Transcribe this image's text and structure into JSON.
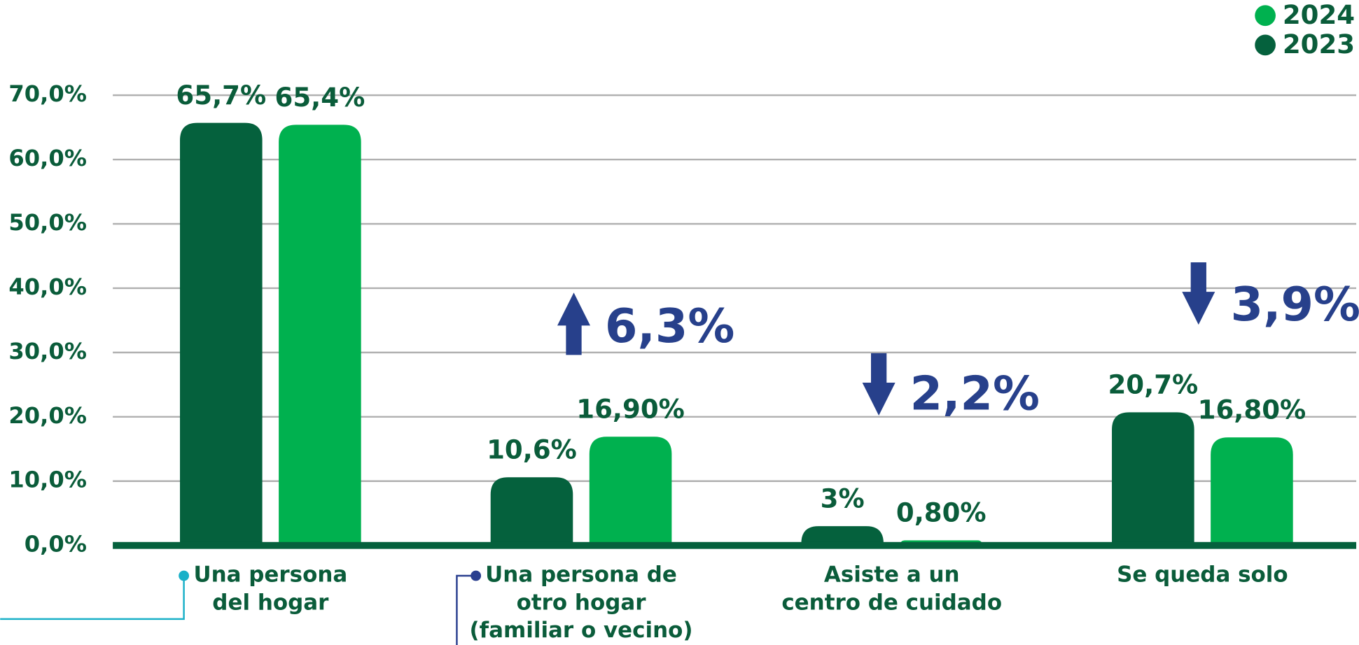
{
  "chart_data": {
    "type": "bar",
    "categories": [
      "Una persona\ndel hogar",
      "Una persona de\notro hogar\n(familiar o vecino)",
      "Asiste a un\ncentro de cuidado",
      "Se queda solo"
    ],
    "series": [
      {
        "name": "2023",
        "color": "#05613d",
        "values": [
          65.7,
          10.6,
          3,
          20.7
        ],
        "value_labels": [
          "65,7%",
          "10,6%",
          "3%",
          "20,7%"
        ]
      },
      {
        "name": "2024",
        "color": "#00b14f",
        "values": [
          65.4,
          16.9,
          0.8,
          16.8
        ],
        "value_labels": [
          "65,4%",
          "16,90%",
          "0,80%",
          "16,80%"
        ]
      }
    ],
    "ylim": [
      0,
      70
    ],
    "yticks": [
      {
        "value": 0,
        "label": "0,0%"
      },
      {
        "value": 10,
        "label": "10,0%"
      },
      {
        "value": 20,
        "label": "20,0%"
      },
      {
        "value": 30,
        "label": "30,0%"
      },
      {
        "value": 40,
        "label": "40,0%"
      },
      {
        "value": 50,
        "label": "50,0%"
      },
      {
        "value": 60,
        "label": "60,0%"
      },
      {
        "value": 70,
        "label": "70,0%"
      }
    ],
    "grid": true,
    "legend": "top-right",
    "annotations": [
      {
        "text": "6,3%",
        "direction": "up"
      },
      {
        "text": "2,2%",
        "direction": "down"
      },
      {
        "text": "3,9%",
        "direction": "down"
      }
    ]
  }
}
